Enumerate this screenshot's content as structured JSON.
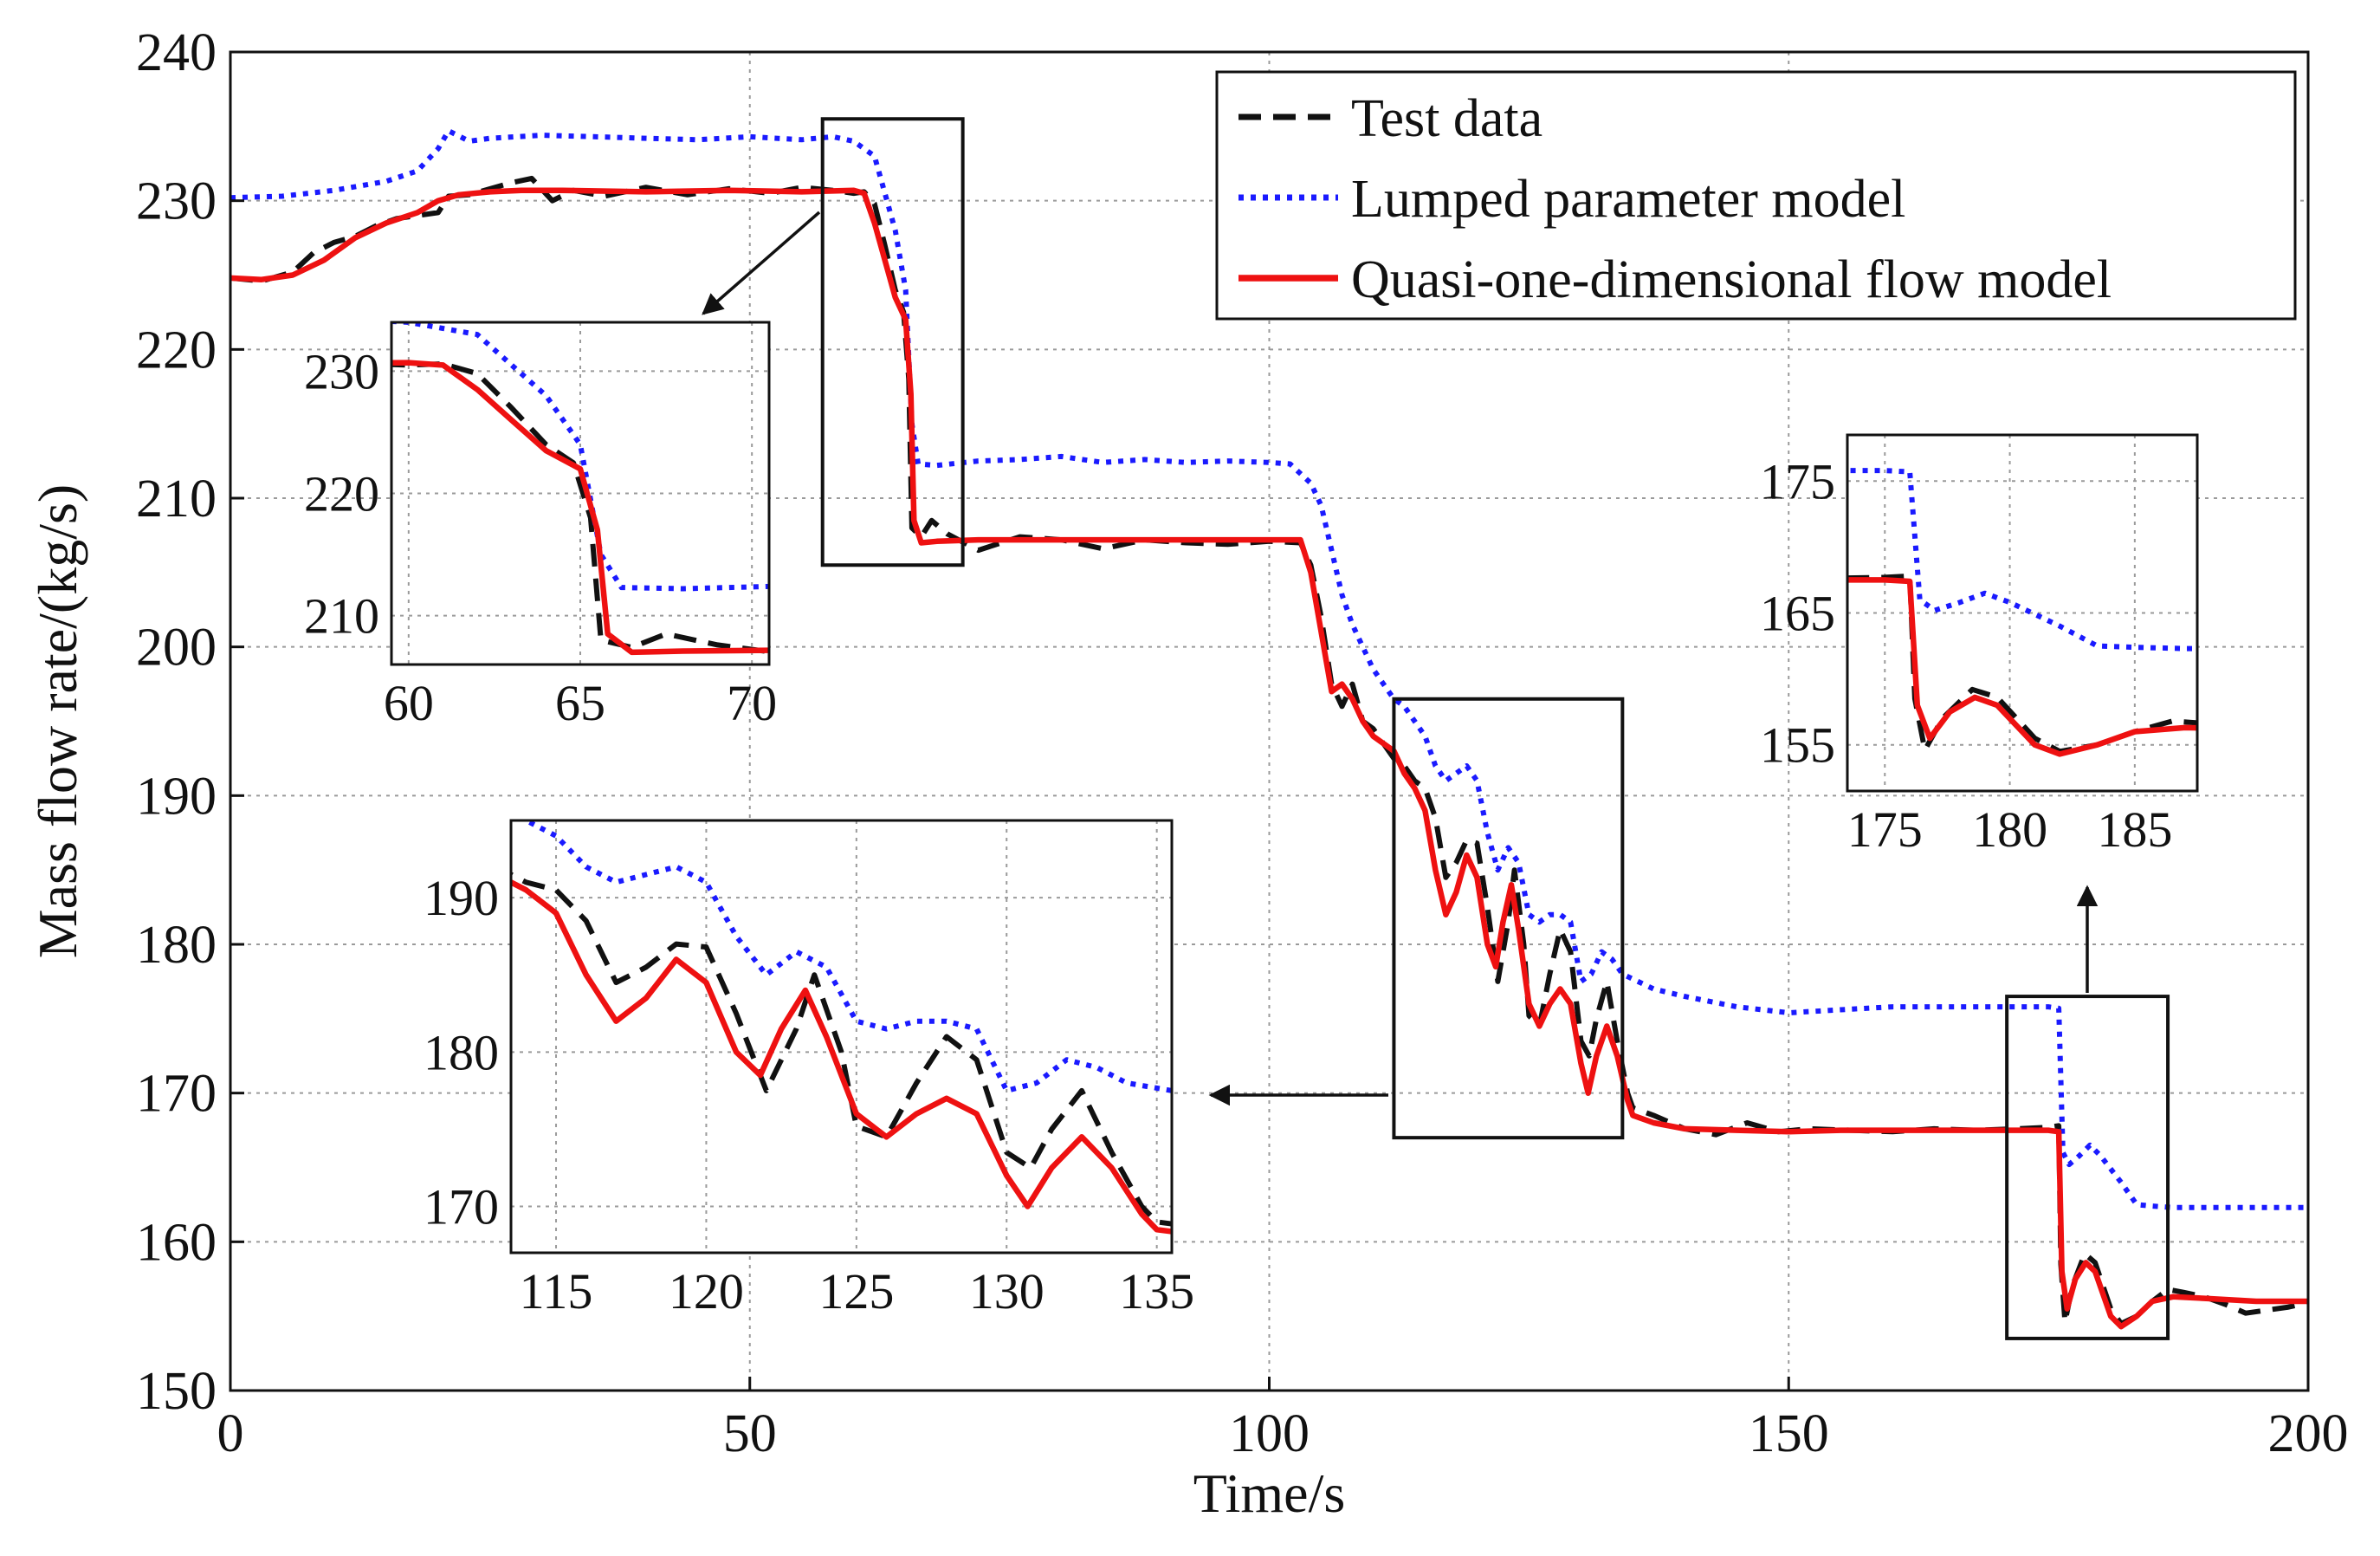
{
  "chart_data": {
    "type": "line",
    "title": "",
    "xlabel": "Time/s",
    "ylabel": "Mass flow rate/(kg/s)",
    "xlim": [
      0,
      200
    ],
    "ylim": [
      150,
      240
    ],
    "xticks": [
      0,
      50,
      100,
      150,
      200
    ],
    "yticks": [
      150,
      160,
      170,
      180,
      190,
      200,
      210,
      220,
      230,
      240
    ],
    "grid": true,
    "legend": {
      "position": "top-right",
      "entries": [
        {
          "name": "Test data",
          "color": "#111111",
          "style": "dashed"
        },
        {
          "name": "Lumped parameter model",
          "color": "#1a1aff",
          "style": "dotted"
        },
        {
          "name": "Quasi-one-dimensional flow model",
          "color": "#ee1111",
          "style": "solid"
        }
      ]
    },
    "series": [
      {
        "name": "Test data",
        "color": "#111111",
        "style": "dashed",
        "points": [
          [
            0,
            224.8
          ],
          [
            3,
            224.6
          ],
          [
            6,
            225.2
          ],
          [
            8,
            226.5
          ],
          [
            10,
            227.2
          ],
          [
            12,
            227.6
          ],
          [
            14,
            228.3
          ],
          [
            16,
            228.8
          ],
          [
            18,
            229.0
          ],
          [
            20,
            229.2
          ],
          [
            21,
            230.3
          ],
          [
            23,
            230.4
          ],
          [
            25,
            230.8
          ],
          [
            27,
            231.2
          ],
          [
            29,
            231.5
          ],
          [
            31,
            230.0
          ],
          [
            33,
            230.7
          ],
          [
            36,
            230.3
          ],
          [
            40,
            230.9
          ],
          [
            44,
            230.4
          ],
          [
            48,
            230.8
          ],
          [
            52,
            230.5
          ],
          [
            55,
            230.9
          ],
          [
            58,
            230.7
          ],
          [
            60,
            230.5
          ],
          [
            61,
            230.6
          ],
          [
            62,
            229.8
          ],
          [
            63,
            227.0
          ],
          [
            64,
            224.0
          ],
          [
            64.8,
            222.5
          ],
          [
            65.3,
            218.0
          ],
          [
            65.6,
            208.0
          ],
          [
            66.5,
            207.4
          ],
          [
            67.5,
            208.5
          ],
          [
            69,
            207.6
          ],
          [
            72,
            206.5
          ],
          [
            76,
            207.4
          ],
          [
            80,
            207.2
          ],
          [
            84,
            206.6
          ],
          [
            88,
            207.2
          ],
          [
            92,
            207.0
          ],
          [
            96,
            206.9
          ],
          [
            100,
            207.1
          ],
          [
            103,
            207.0
          ],
          [
            104,
            205.5
          ],
          [
            105,
            202.0
          ],
          [
            106,
            197.5
          ],
          [
            107,
            196.0
          ],
          [
            108,
            197.5
          ],
          [
            109,
            195.0
          ],
          [
            110,
            194.5
          ],
          [
            111,
            193.5
          ],
          [
            112,
            192.5
          ],
          [
            113,
            192.0
          ],
          [
            114,
            191.0
          ],
          [
            115,
            190.5
          ],
          [
            116,
            188.5
          ],
          [
            117,
            184.5
          ],
          [
            118,
            185.5
          ],
          [
            119,
            187.0
          ],
          [
            120,
            186.8
          ],
          [
            121,
            182.5
          ],
          [
            122,
            177.5
          ],
          [
            123,
            181.5
          ],
          [
            123.6,
            185.0
          ],
          [
            124.5,
            180.0
          ],
          [
            125,
            175.2
          ],
          [
            126,
            174.5
          ],
          [
            127,
            178.0
          ],
          [
            128,
            181.0
          ],
          [
            129,
            179.5
          ],
          [
            130,
            173.5
          ],
          [
            130.8,
            172.5
          ],
          [
            131.5,
            175.0
          ],
          [
            132.5,
            177.5
          ],
          [
            133.5,
            173.5
          ],
          [
            134.5,
            170.0
          ],
          [
            135,
            169.0
          ],
          [
            137,
            168.5
          ],
          [
            140,
            167.6
          ],
          [
            143,
            167.2
          ],
          [
            146,
            168.0
          ],
          [
            149,
            167.4
          ],
          [
            152,
            167.6
          ],
          [
            156,
            167.5
          ],
          [
            160,
            167.4
          ],
          [
            164,
            167.6
          ],
          [
            168,
            167.5
          ],
          [
            172,
            167.6
          ],
          [
            175,
            167.7
          ],
          [
            176,
            167.8
          ],
          [
            176.2,
            158.5
          ],
          [
            176.6,
            154.6
          ],
          [
            177.3,
            157.0
          ],
          [
            178.5,
            159.2
          ],
          [
            179.5,
            158.6
          ],
          [
            181,
            155.5
          ],
          [
            182,
            154.5
          ],
          [
            183.5,
            155.0
          ],
          [
            185,
            156.0
          ],
          [
            186.5,
            156.8
          ],
          [
            188,
            156.6
          ],
          [
            190,
            156.3
          ],
          [
            192,
            155.8
          ],
          [
            194,
            155.2
          ],
          [
            196,
            155.4
          ],
          [
            198,
            155.6
          ],
          [
            200,
            155.9
          ]
        ]
      },
      {
        "name": "Lumped parameter model",
        "color": "#1a1aff",
        "style": "dotted",
        "points": [
          [
            0,
            230.2
          ],
          [
            5,
            230.3
          ],
          [
            10,
            230.7
          ],
          [
            15,
            231.3
          ],
          [
            18,
            232.0
          ],
          [
            20,
            233.5
          ],
          [
            21,
            234.7
          ],
          [
            23,
            234.0
          ],
          [
            25,
            234.2
          ],
          [
            30,
            234.4
          ],
          [
            35,
            234.3
          ],
          [
            40,
            234.2
          ],
          [
            45,
            234.1
          ],
          [
            50,
            234.3
          ],
          [
            55,
            234.1
          ],
          [
            58,
            234.3
          ],
          [
            60,
            234.0
          ],
          [
            62,
            233.0
          ],
          [
            64,
            228.0
          ],
          [
            65,
            224.0
          ],
          [
            65.6,
            215.0
          ],
          [
            66.2,
            212.3
          ],
          [
            68,
            212.2
          ],
          [
            72,
            212.5
          ],
          [
            76,
            212.6
          ],
          [
            80,
            212.8
          ],
          [
            84,
            212.4
          ],
          [
            88,
            212.6
          ],
          [
            92,
            212.4
          ],
          [
            96,
            212.5
          ],
          [
            100,
            212.4
          ],
          [
            102,
            212.3
          ],
          [
            104,
            211.0
          ],
          [
            105,
            209.5
          ],
          [
            106,
            206.5
          ],
          [
            107,
            203.5
          ],
          [
            108,
            201.5
          ],
          [
            109,
            200.0
          ],
          [
            110,
            198.5
          ],
          [
            111,
            197.5
          ],
          [
            112,
            196.5
          ],
          [
            113,
            196.0
          ],
          [
            114,
            195.0
          ],
          [
            115,
            194.0
          ],
          [
            116,
            192.0
          ],
          [
            117,
            191.0
          ],
          [
            118,
            191.5
          ],
          [
            119,
            192.0
          ],
          [
            120,
            191.0
          ],
          [
            121,
            187.5
          ],
          [
            122,
            185.0
          ],
          [
            123,
            186.5
          ],
          [
            124,
            185.5
          ],
          [
            125,
            182.0
          ],
          [
            126,
            181.5
          ],
          [
            127,
            182.0
          ],
          [
            128,
            182.0
          ],
          [
            129,
            181.5
          ],
          [
            130,
            177.5
          ],
          [
            131,
            178.0
          ],
          [
            132,
            179.5
          ],
          [
            133,
            179.0
          ],
          [
            134,
            178.0
          ],
          [
            137,
            177.0
          ],
          [
            140,
            176.5
          ],
          [
            145,
            175.8
          ],
          [
            150,
            175.4
          ],
          [
            155,
            175.6
          ],
          [
            160,
            175.8
          ],
          [
            165,
            175.8
          ],
          [
            170,
            175.8
          ],
          [
            175,
            175.8
          ],
          [
            176,
            175.7
          ],
          [
            176.4,
            166.0
          ],
          [
            177,
            165.2
          ],
          [
            178,
            165.8
          ],
          [
            179,
            166.5
          ],
          [
            180,
            165.8
          ],
          [
            182,
            164.0
          ],
          [
            183.5,
            162.5
          ],
          [
            185,
            162.4
          ],
          [
            187,
            162.3
          ],
          [
            190,
            162.3
          ],
          [
            195,
            162.3
          ],
          [
            200,
            162.3
          ]
        ]
      },
      {
        "name": "Quasi-one-dimensional flow model",
        "color": "#ee1111",
        "style": "solid",
        "points": [
          [
            0,
            224.8
          ],
          [
            3,
            224.7
          ],
          [
            6,
            225.0
          ],
          [
            9,
            226.0
          ],
          [
            12,
            227.5
          ],
          [
            15,
            228.5
          ],
          [
            18,
            229.2
          ],
          [
            20,
            230.0
          ],
          [
            22,
            230.4
          ],
          [
            25,
            230.6
          ],
          [
            28,
            230.7
          ],
          [
            32,
            230.7
          ],
          [
            40,
            230.6
          ],
          [
            48,
            230.7
          ],
          [
            55,
            230.6
          ],
          [
            60,
            230.7
          ],
          [
            61,
            230.5
          ],
          [
            62,
            228.5
          ],
          [
            63,
            226.0
          ],
          [
            64,
            223.5
          ],
          [
            65,
            222.0
          ],
          [
            65.5,
            217.0
          ],
          [
            65.8,
            208.5
          ],
          [
            66.5,
            207.0
          ],
          [
            68,
            207.1
          ],
          [
            72,
            207.2
          ],
          [
            80,
            207.2
          ],
          [
            90,
            207.2
          ],
          [
            100,
            207.2
          ],
          [
            103,
            207.2
          ],
          [
            104,
            205.0
          ],
          [
            105,
            201.0
          ],
          [
            106,
            197.0
          ],
          [
            107,
            197.5
          ],
          [
            108,
            196.5
          ],
          [
            109,
            195.0
          ],
          [
            110,
            194.0
          ],
          [
            111,
            193.5
          ],
          [
            112,
            193.0
          ],
          [
            113,
            191.5
          ],
          [
            114,
            190.5
          ],
          [
            115,
            189.0
          ],
          [
            116,
            185.0
          ],
          [
            117,
            182.0
          ],
          [
            118,
            183.5
          ],
          [
            119,
            186.0
          ],
          [
            120,
            184.5
          ],
          [
            121,
            180.0
          ],
          [
            121.8,
            178.5
          ],
          [
            122.5,
            181.5
          ],
          [
            123.3,
            184.0
          ],
          [
            124,
            181.0
          ],
          [
            125,
            176.0
          ],
          [
            126,
            174.5
          ],
          [
            127,
            176.0
          ],
          [
            128,
            177.0
          ],
          [
            129,
            176.0
          ],
          [
            130,
            172.0
          ],
          [
            130.7,
            170.0
          ],
          [
            131.5,
            172.5
          ],
          [
            132.5,
            174.5
          ],
          [
            133.5,
            172.5
          ],
          [
            134.5,
            169.5
          ],
          [
            135,
            168.5
          ],
          [
            137,
            168.0
          ],
          [
            140,
            167.6
          ],
          [
            145,
            167.5
          ],
          [
            150,
            167.4
          ],
          [
            155,
            167.5
          ],
          [
            160,
            167.5
          ],
          [
            165,
            167.5
          ],
          [
            170,
            167.5
          ],
          [
            175,
            167.5
          ],
          [
            176,
            167.4
          ],
          [
            176.3,
            158.0
          ],
          [
            176.8,
            155.5
          ],
          [
            177.6,
            157.5
          ],
          [
            178.6,
            158.6
          ],
          [
            179.5,
            158.0
          ],
          [
            181,
            155.0
          ],
          [
            182,
            154.3
          ],
          [
            183.5,
            155.0
          ],
          [
            185,
            156.0
          ],
          [
            187,
            156.3
          ],
          [
            190,
            156.2
          ],
          [
            195,
            156.0
          ],
          [
            200,
            156.0
          ]
        ]
      }
    ],
    "insets": [
      {
        "name": "inset-1",
        "xlim": [
          59.5,
          70.5
        ],
        "ylim": [
          206,
          234
        ],
        "xticks": [
          60,
          65,
          70
        ],
        "yticks": [
          210,
          220,
          230
        ],
        "zoom_box": {
          "x": [
            57,
            70.5
          ],
          "y": [
            205.5,
            235.5
          ]
        }
      },
      {
        "name": "inset-2",
        "xlim": [
          113.5,
          135.5
        ],
        "ylim": [
          167,
          195
        ],
        "xticks": [
          115,
          120,
          125,
          130,
          135
        ],
        "yticks": [
          170,
          180,
          190
        ],
        "zoom_box": {
          "x": [
            112,
            134
          ],
          "y": [
            167,
            196.5
          ]
        }
      },
      {
        "name": "inset-3",
        "xlim": [
          173.5,
          187.5
        ],
        "ylim": [
          151.5,
          178.5
        ],
        "xticks": [
          175,
          180,
          185
        ],
        "yticks": [
          155,
          165,
          175
        ],
        "zoom_box": {
          "x": [
            171,
            186.5
          ],
          "y": [
            153.5,
            176.5
          ]
        }
      }
    ]
  }
}
